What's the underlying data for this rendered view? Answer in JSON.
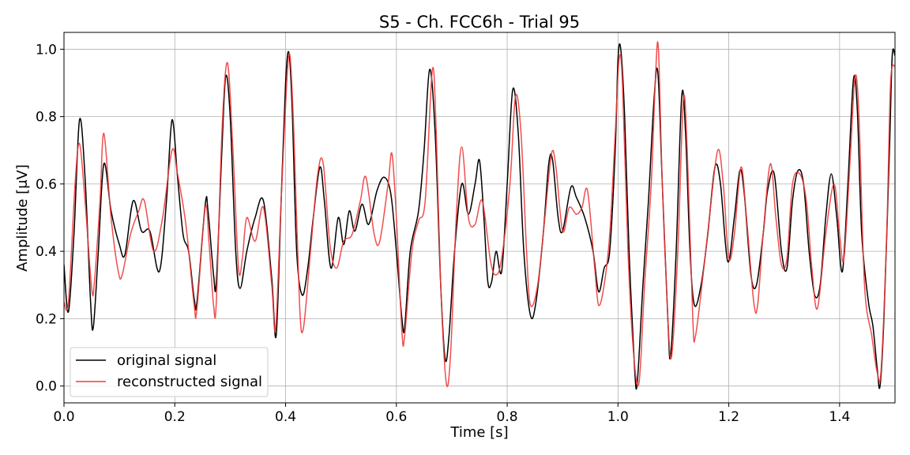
{
  "chart_data": {
    "type": "line",
    "title": "S5 - Ch. FCC6h - Trial 95",
    "xlabel": "Time [s]",
    "ylabel": "Amplitude [μV]",
    "xlim": [
      0,
      1.5
    ],
    "ylim": [
      -0.05,
      1.05
    ],
    "x_ticks": [
      0.0,
      0.2,
      0.4,
      0.6,
      0.8,
      1.0,
      1.2,
      1.4
    ],
    "y_ticks": [
      0.0,
      0.2,
      0.4,
      0.6,
      0.8,
      1.0
    ],
    "x_tick_labels": [
      "0.0",
      "0.2",
      "0.4",
      "0.6",
      "0.8",
      "1.0",
      "1.2",
      "1.4"
    ],
    "y_tick_labels": [
      "0.0",
      "0.2",
      "0.4",
      "0.6",
      "0.8",
      "1.0"
    ],
    "grid": true,
    "legend_position": "lower-left",
    "series": [
      {
        "name": "original signal",
        "color": "#000000",
        "points": [
          [
            0.0,
            0.36
          ],
          [
            0.008,
            0.22
          ],
          [
            0.018,
            0.45
          ],
          [
            0.028,
            0.79
          ],
          [
            0.038,
            0.62
          ],
          [
            0.048,
            0.25
          ],
          [
            0.053,
            0.175
          ],
          [
            0.062,
            0.4
          ],
          [
            0.072,
            0.66
          ],
          [
            0.085,
            0.52
          ],
          [
            0.1,
            0.42
          ],
          [
            0.11,
            0.39
          ],
          [
            0.125,
            0.55
          ],
          [
            0.14,
            0.46
          ],
          [
            0.155,
            0.46
          ],
          [
            0.172,
            0.34
          ],
          [
            0.185,
            0.55
          ],
          [
            0.195,
            0.79
          ],
          [
            0.205,
            0.62
          ],
          [
            0.215,
            0.45
          ],
          [
            0.225,
            0.4
          ],
          [
            0.235,
            0.26
          ],
          [
            0.24,
            0.25
          ],
          [
            0.255,
            0.54
          ],
          [
            0.26,
            0.52
          ],
          [
            0.27,
            0.33
          ],
          [
            0.275,
            0.31
          ],
          [
            0.285,
            0.7
          ],
          [
            0.292,
            0.92
          ],
          [
            0.3,
            0.8
          ],
          [
            0.31,
            0.4
          ],
          [
            0.318,
            0.29
          ],
          [
            0.33,
            0.4
          ],
          [
            0.345,
            0.5
          ],
          [
            0.36,
            0.55
          ],
          [
            0.375,
            0.32
          ],
          [
            0.383,
            0.15
          ],
          [
            0.392,
            0.55
          ],
          [
            0.4,
            0.9
          ],
          [
            0.406,
            0.99
          ],
          [
            0.412,
            0.82
          ],
          [
            0.42,
            0.4
          ],
          [
            0.43,
            0.27
          ],
          [
            0.44,
            0.35
          ],
          [
            0.45,
            0.5
          ],
          [
            0.462,
            0.65
          ],
          [
            0.47,
            0.55
          ],
          [
            0.482,
            0.35
          ],
          [
            0.495,
            0.5
          ],
          [
            0.505,
            0.42
          ],
          [
            0.515,
            0.52
          ],
          [
            0.525,
            0.46
          ],
          [
            0.538,
            0.54
          ],
          [
            0.55,
            0.48
          ],
          [
            0.565,
            0.58
          ],
          [
            0.578,
            0.62
          ],
          [
            0.59,
            0.57
          ],
          [
            0.6,
            0.4
          ],
          [
            0.61,
            0.2
          ],
          [
            0.615,
            0.175
          ],
          [
            0.625,
            0.4
          ],
          [
            0.64,
            0.52
          ],
          [
            0.65,
            0.7
          ],
          [
            0.66,
            0.94
          ],
          [
            0.67,
            0.75
          ],
          [
            0.68,
            0.3
          ],
          [
            0.688,
            0.08
          ],
          [
            0.695,
            0.15
          ],
          [
            0.705,
            0.4
          ],
          [
            0.718,
            0.6
          ],
          [
            0.73,
            0.51
          ],
          [
            0.742,
            0.6
          ],
          [
            0.75,
            0.67
          ],
          [
            0.758,
            0.5
          ],
          [
            0.765,
            0.31
          ],
          [
            0.772,
            0.31
          ],
          [
            0.78,
            0.4
          ],
          [
            0.79,
            0.34
          ],
          [
            0.8,
            0.6
          ],
          [
            0.81,
            0.88
          ],
          [
            0.82,
            0.75
          ],
          [
            0.83,
            0.4
          ],
          [
            0.842,
            0.21
          ],
          [
            0.852,
            0.25
          ],
          [
            0.865,
            0.45
          ],
          [
            0.875,
            0.66
          ],
          [
            0.882,
            0.67
          ],
          [
            0.892,
            0.5
          ],
          [
            0.9,
            0.46
          ],
          [
            0.915,
            0.59
          ],
          [
            0.925,
            0.56
          ],
          [
            0.94,
            0.5
          ],
          [
            0.955,
            0.4
          ],
          [
            0.965,
            0.28
          ],
          [
            0.975,
            0.35
          ],
          [
            0.985,
            0.4
          ],
          [
            0.995,
            0.7
          ],
          [
            1.0,
            0.97
          ],
          [
            1.005,
            1.0
          ],
          [
            1.012,
            0.8
          ],
          [
            1.02,
            0.4
          ],
          [
            1.03,
            0.05
          ],
          [
            1.035,
            0.015
          ],
          [
            1.045,
            0.3
          ],
          [
            1.055,
            0.55
          ],
          [
            1.065,
            0.85
          ],
          [
            1.072,
            0.93
          ],
          [
            1.08,
            0.6
          ],
          [
            1.09,
            0.2
          ],
          [
            1.095,
            0.09
          ],
          [
            1.105,
            0.4
          ],
          [
            1.115,
            0.86
          ],
          [
            1.122,
            0.75
          ],
          [
            1.13,
            0.4
          ],
          [
            1.138,
            0.24
          ],
          [
            1.15,
            0.3
          ],
          [
            1.162,
            0.45
          ],
          [
            1.175,
            0.65
          ],
          [
            1.185,
            0.6
          ],
          [
            1.198,
            0.37
          ],
          [
            1.21,
            0.5
          ],
          [
            1.22,
            0.64
          ],
          [
            1.228,
            0.57
          ],
          [
            1.24,
            0.33
          ],
          [
            1.25,
            0.3
          ],
          [
            1.262,
            0.45
          ],
          [
            1.27,
            0.58
          ],
          [
            1.282,
            0.63
          ],
          [
            1.295,
            0.4
          ],
          [
            1.305,
            0.35
          ],
          [
            1.315,
            0.55
          ],
          [
            1.325,
            0.64
          ],
          [
            1.335,
            0.6
          ],
          [
            1.345,
            0.4
          ],
          [
            1.355,
            0.27
          ],
          [
            1.365,
            0.3
          ],
          [
            1.375,
            0.5
          ],
          [
            1.385,
            0.63
          ],
          [
            1.395,
            0.5
          ],
          [
            1.405,
            0.34
          ],
          [
            1.415,
            0.6
          ],
          [
            1.425,
            0.91
          ],
          [
            1.432,
            0.82
          ],
          [
            1.44,
            0.45
          ],
          [
            1.452,
            0.25
          ],
          [
            1.46,
            0.18
          ],
          [
            1.468,
            0.05
          ],
          [
            1.473,
            0.0
          ],
          [
            1.48,
            0.2
          ],
          [
            1.49,
            0.7
          ],
          [
            1.495,
            0.98
          ],
          [
            1.5,
            0.98
          ]
        ]
      },
      {
        "name": "reconstructed signal",
        "color": "#ee3b3b",
        "points": [
          [
            0.0,
            0.25
          ],
          [
            0.008,
            0.25
          ],
          [
            0.02,
            0.6
          ],
          [
            0.028,
            0.72
          ],
          [
            0.038,
            0.55
          ],
          [
            0.05,
            0.29
          ],
          [
            0.055,
            0.31
          ],
          [
            0.065,
            0.55
          ],
          [
            0.072,
            0.75
          ],
          [
            0.085,
            0.5
          ],
          [
            0.098,
            0.34
          ],
          [
            0.105,
            0.33
          ],
          [
            0.12,
            0.45
          ],
          [
            0.135,
            0.52
          ],
          [
            0.145,
            0.55
          ],
          [
            0.162,
            0.4
          ],
          [
            0.178,
            0.5
          ],
          [
            0.195,
            0.7
          ],
          [
            0.205,
            0.63
          ],
          [
            0.22,
            0.48
          ],
          [
            0.235,
            0.24
          ],
          [
            0.24,
            0.23
          ],
          [
            0.255,
            0.53
          ],
          [
            0.262,
            0.42
          ],
          [
            0.27,
            0.24
          ],
          [
            0.275,
            0.25
          ],
          [
            0.285,
            0.75
          ],
          [
            0.295,
            0.96
          ],
          [
            0.305,
            0.7
          ],
          [
            0.315,
            0.35
          ],
          [
            0.322,
            0.38
          ],
          [
            0.33,
            0.5
          ],
          [
            0.345,
            0.43
          ],
          [
            0.36,
            0.53
          ],
          [
            0.375,
            0.3
          ],
          [
            0.382,
            0.17
          ],
          [
            0.392,
            0.55
          ],
          [
            0.402,
            0.9
          ],
          [
            0.408,
            0.98
          ],
          [
            0.415,
            0.75
          ],
          [
            0.425,
            0.25
          ],
          [
            0.432,
            0.17
          ],
          [
            0.445,
            0.4
          ],
          [
            0.458,
            0.63
          ],
          [
            0.468,
            0.66
          ],
          [
            0.48,
            0.42
          ],
          [
            0.492,
            0.35
          ],
          [
            0.505,
            0.43
          ],
          [
            0.52,
            0.45
          ],
          [
            0.535,
            0.55
          ],
          [
            0.545,
            0.62
          ],
          [
            0.56,
            0.45
          ],
          [
            0.57,
            0.43
          ],
          [
            0.585,
            0.6
          ],
          [
            0.592,
            0.69
          ],
          [
            0.6,
            0.5
          ],
          [
            0.61,
            0.16
          ],
          [
            0.615,
            0.15
          ],
          [
            0.628,
            0.4
          ],
          [
            0.64,
            0.49
          ],
          [
            0.652,
            0.55
          ],
          [
            0.665,
            0.94
          ],
          [
            0.672,
            0.75
          ],
          [
            0.68,
            0.3
          ],
          [
            0.69,
            0.01
          ],
          [
            0.698,
            0.1
          ],
          [
            0.708,
            0.5
          ],
          [
            0.718,
            0.71
          ],
          [
            0.73,
            0.5
          ],
          [
            0.742,
            0.48
          ],
          [
            0.755,
            0.55
          ],
          [
            0.77,
            0.37
          ],
          [
            0.78,
            0.33
          ],
          [
            0.79,
            0.38
          ],
          [
            0.805,
            0.6
          ],
          [
            0.815,
            0.86
          ],
          [
            0.825,
            0.75
          ],
          [
            0.835,
            0.4
          ],
          [
            0.842,
            0.24
          ],
          [
            0.855,
            0.3
          ],
          [
            0.868,
            0.5
          ],
          [
            0.88,
            0.69
          ],
          [
            0.888,
            0.65
          ],
          [
            0.9,
            0.46
          ],
          [
            0.912,
            0.53
          ],
          [
            0.925,
            0.51
          ],
          [
            0.935,
            0.53
          ],
          [
            0.945,
            0.58
          ],
          [
            0.958,
            0.35
          ],
          [
            0.965,
            0.24
          ],
          [
            0.975,
            0.3
          ],
          [
            0.985,
            0.45
          ],
          [
            0.995,
            0.75
          ],
          [
            1.002,
            0.97
          ],
          [
            1.008,
            0.9
          ],
          [
            1.018,
            0.4
          ],
          [
            1.028,
            0.1
          ],
          [
            1.038,
            0.01
          ],
          [
            1.048,
            0.3
          ],
          [
            1.06,
            0.6
          ],
          [
            1.068,
            0.93
          ],
          [
            1.073,
            1.0
          ],
          [
            1.08,
            0.6
          ],
          [
            1.09,
            0.2
          ],
          [
            1.097,
            0.09
          ],
          [
            1.108,
            0.4
          ],
          [
            1.118,
            0.85
          ],
          [
            1.125,
            0.7
          ],
          [
            1.135,
            0.2
          ],
          [
            1.14,
            0.15
          ],
          [
            1.155,
            0.35
          ],
          [
            1.165,
            0.5
          ],
          [
            1.18,
            0.7
          ],
          [
            1.19,
            0.6
          ],
          [
            1.2,
            0.38
          ],
          [
            1.21,
            0.45
          ],
          [
            1.222,
            0.65
          ],
          [
            1.232,
            0.5
          ],
          [
            1.245,
            0.25
          ],
          [
            1.252,
            0.24
          ],
          [
            1.262,
            0.45
          ],
          [
            1.275,
            0.66
          ],
          [
            1.285,
            0.5
          ],
          [
            1.295,
            0.36
          ],
          [
            1.305,
            0.38
          ],
          [
            1.315,
            0.6
          ],
          [
            1.328,
            0.63
          ],
          [
            1.34,
            0.55
          ],
          [
            1.35,
            0.35
          ],
          [
            1.36,
            0.23
          ],
          [
            1.375,
            0.45
          ],
          [
            1.39,
            0.6
          ],
          [
            1.4,
            0.45
          ],
          [
            1.408,
            0.38
          ],
          [
            1.42,
            0.7
          ],
          [
            1.428,
            0.92
          ],
          [
            1.435,
            0.8
          ],
          [
            1.445,
            0.3
          ],
          [
            1.458,
            0.15
          ],
          [
            1.468,
            0.04
          ],
          [
            1.475,
            0.05
          ],
          [
            1.485,
            0.45
          ],
          [
            1.492,
            0.9
          ],
          [
            1.5,
            0.95
          ]
        ]
      }
    ]
  }
}
